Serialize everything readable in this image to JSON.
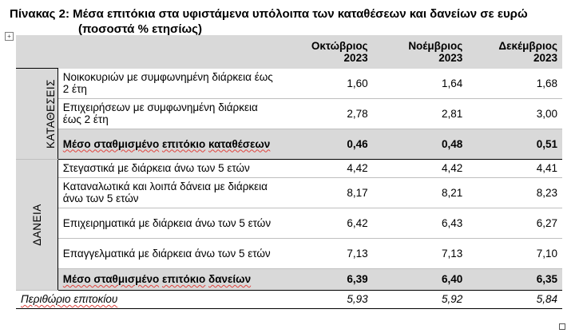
{
  "title": {
    "line1": "Πίνακας 2: Μέσα επιτόκια στα υφιστάμενα υπόλοιπα των καταθέσεων και δανείων σε ευρώ",
    "line2": "(ποσοστά % ετησίως)"
  },
  "handles": {
    "move": "+",
    "resize": ""
  },
  "header": {
    "cols": [
      {
        "month": "Οκτώβριος",
        "year": "2023"
      },
      {
        "month": "Νοέμβριος",
        "year": "2023"
      },
      {
        "month": "Δεκέμβριος",
        "year": "2023"
      }
    ]
  },
  "deposits": {
    "group_label": "ΚΑΤΑΘΕΣΕΙΣ",
    "rows": [
      {
        "label": "Νοικοκυριών με συμφωνημένη διάρκεια έως 2 έτη",
        "values": [
          "1,60",
          "1,64",
          "1,68"
        ]
      },
      {
        "label": "Επιχειρήσεων με συμφωνημένη διάρκεια έως 2 έτη",
        "values": [
          "2,78",
          "2,81",
          "3,00"
        ]
      }
    ],
    "avg": {
      "label_a": "Μέσο σταθμισμένο",
      "label_b": "επιτόκιο",
      "label_c": "καταθέσεων",
      "values": [
        "0,46",
        "0,48",
        "0,51"
      ]
    }
  },
  "loans": {
    "group_label": "ΔΑΝΕΙΑ",
    "rows": [
      {
        "label": "Στεγαστικά με διάρκεια άνω των 5 ετών",
        "values": [
          "4,42",
          "4,42",
          "4,41"
        ]
      },
      {
        "label": "Καταναλωτικά και λοιπά δάνεια με διάρκεια άνω των 5 ετών",
        "values": [
          "8,17",
          "8,21",
          "8,23"
        ]
      },
      {
        "label": "Επιχειρηματικά με διάρκεια άνω των 5 ετών",
        "values": [
          "6,42",
          "6,43",
          "6,27"
        ]
      },
      {
        "label": "Επαγγελματικά με διάρκεια άνω των 5 ετών",
        "values": [
          "7,13",
          "7,13",
          "7,10"
        ]
      }
    ],
    "avg": {
      "label_a": "Μέσο σταθμισμένο",
      "label_b": "επιτόκιο",
      "label_c": "δανείων",
      "values": [
        "6,39",
        "6,40",
        "6,35"
      ]
    }
  },
  "margin": {
    "label": "Περιθώριο επιτοκίου",
    "values": [
      "5,93",
      "5,92",
      "5,84"
    ]
  }
}
